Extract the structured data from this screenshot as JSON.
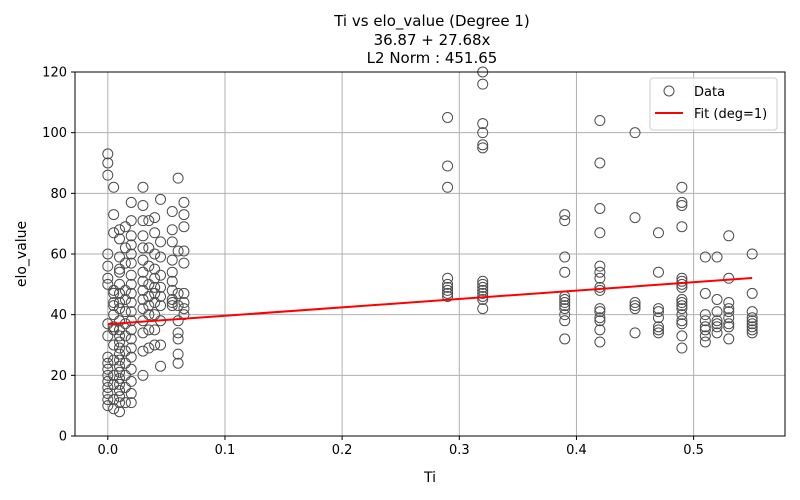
{
  "chart_data": {
    "type": "scatter",
    "title_lines": [
      "Ti vs elo_value (Degree 1)",
      "36.87 + 27.68x",
      "L2 Norm : 451.65"
    ],
    "xlabel": "Ti",
    "ylabel": "elo_value",
    "xlim": [
      -0.028,
      0.578
    ],
    "ylim": [
      0,
      120
    ],
    "xticks": [
      0.0,
      0.1,
      0.2,
      0.3,
      0.4,
      0.5
    ],
    "xtick_labels": [
      "0.0",
      "0.1",
      "0.2",
      "0.3",
      "0.4",
      "0.5"
    ],
    "yticks": [
      0,
      20,
      40,
      60,
      80,
      100,
      120
    ],
    "ytick_labels": [
      "0",
      "20",
      "40",
      "60",
      "80",
      "100",
      "120"
    ],
    "grid": true,
    "legend": {
      "position": "top-right",
      "entries": [
        "Data",
        "Fit (deg=1)"
      ]
    },
    "colors": {
      "data_marker": "#4d4d4d",
      "fit_line": "#ff0000",
      "grid": "#b0b0b0"
    },
    "series": [
      {
        "name": "Data",
        "kind": "scatter",
        "points": [
          [
            0.0,
            93
          ],
          [
            0.0,
            90
          ],
          [
            0.0,
            86
          ],
          [
            0.0,
            60
          ],
          [
            0.0,
            56
          ],
          [
            0.0,
            52
          ],
          [
            0.0,
            50
          ],
          [
            0.0,
            37
          ],
          [
            0.0,
            33
          ],
          [
            0.0,
            26
          ],
          [
            0.0,
            24
          ],
          [
            0.0,
            22
          ],
          [
            0.0,
            20
          ],
          [
            0.0,
            18
          ],
          [
            0.0,
            16
          ],
          [
            0.0,
            14
          ],
          [
            0.0,
            12
          ],
          [
            0.0,
            10
          ],
          [
            0.005,
            82
          ],
          [
            0.005,
            73
          ],
          [
            0.005,
            67
          ],
          [
            0.005,
            48
          ],
          [
            0.005,
            47
          ],
          [
            0.005,
            44
          ],
          [
            0.005,
            43
          ],
          [
            0.005,
            40
          ],
          [
            0.005,
            36
          ],
          [
            0.005,
            35
          ],
          [
            0.005,
            30
          ],
          [
            0.005,
            25
          ],
          [
            0.005,
            20
          ],
          [
            0.005,
            17
          ],
          [
            0.005,
            12
          ],
          [
            0.005,
            9
          ],
          [
            0.01,
            68
          ],
          [
            0.01,
            65
          ],
          [
            0.01,
            59
          ],
          [
            0.01,
            55
          ],
          [
            0.01,
            54
          ],
          [
            0.01,
            50
          ],
          [
            0.01,
            47
          ],
          [
            0.01,
            44
          ],
          [
            0.01,
            42
          ],
          [
            0.01,
            38
          ],
          [
            0.01,
            35
          ],
          [
            0.01,
            33
          ],
          [
            0.01,
            31
          ],
          [
            0.01,
            29
          ],
          [
            0.01,
            27
          ],
          [
            0.01,
            25
          ],
          [
            0.01,
            23
          ],
          [
            0.01,
            21
          ],
          [
            0.01,
            19
          ],
          [
            0.01,
            17
          ],
          [
            0.01,
            15
          ],
          [
            0.01,
            13
          ],
          [
            0.01,
            11
          ],
          [
            0.01,
            8
          ],
          [
            0.015,
            69
          ],
          [
            0.015,
            62
          ],
          [
            0.015,
            57
          ],
          [
            0.015,
            48
          ],
          [
            0.015,
            45
          ],
          [
            0.015,
            41
          ],
          [
            0.015,
            37
          ],
          [
            0.015,
            33
          ],
          [
            0.015,
            28
          ],
          [
            0.015,
            24
          ],
          [
            0.015,
            20
          ],
          [
            0.015,
            16
          ],
          [
            0.015,
            11
          ],
          [
            0.02,
            77
          ],
          [
            0.02,
            71
          ],
          [
            0.02,
            66
          ],
          [
            0.02,
            63
          ],
          [
            0.02,
            60
          ],
          [
            0.02,
            57
          ],
          [
            0.02,
            53
          ],
          [
            0.02,
            50
          ],
          [
            0.02,
            47
          ],
          [
            0.02,
            44
          ],
          [
            0.02,
            41
          ],
          [
            0.02,
            38
          ],
          [
            0.02,
            35
          ],
          [
            0.02,
            32
          ],
          [
            0.02,
            29
          ],
          [
            0.02,
            26
          ],
          [
            0.02,
            22
          ],
          [
            0.02,
            18
          ],
          [
            0.02,
            14
          ],
          [
            0.02,
            11
          ],
          [
            0.03,
            82
          ],
          [
            0.03,
            76
          ],
          [
            0.03,
            71
          ],
          [
            0.03,
            66
          ],
          [
            0.03,
            62
          ],
          [
            0.03,
            58
          ],
          [
            0.03,
            54
          ],
          [
            0.03,
            51
          ],
          [
            0.03,
            48
          ],
          [
            0.03,
            45
          ],
          [
            0.03,
            42
          ],
          [
            0.03,
            38
          ],
          [
            0.03,
            34
          ],
          [
            0.03,
            28
          ],
          [
            0.03,
            20
          ],
          [
            0.035,
            71
          ],
          [
            0.035,
            62
          ],
          [
            0.035,
            56
          ],
          [
            0.035,
            50
          ],
          [
            0.035,
            46
          ],
          [
            0.035,
            43
          ],
          [
            0.035,
            40
          ],
          [
            0.035,
            35
          ],
          [
            0.035,
            29
          ],
          [
            0.04,
            72
          ],
          [
            0.04,
            67
          ],
          [
            0.04,
            60
          ],
          [
            0.04,
            55
          ],
          [
            0.04,
            52
          ],
          [
            0.04,
            49
          ],
          [
            0.04,
            47
          ],
          [
            0.04,
            44
          ],
          [
            0.04,
            40
          ],
          [
            0.04,
            35
          ],
          [
            0.04,
            30
          ],
          [
            0.045,
            78
          ],
          [
            0.045,
            64
          ],
          [
            0.045,
            59
          ],
          [
            0.045,
            53
          ],
          [
            0.045,
            49
          ],
          [
            0.045,
            46
          ],
          [
            0.045,
            43
          ],
          [
            0.045,
            38
          ],
          [
            0.045,
            30
          ],
          [
            0.045,
            23
          ],
          [
            0.055,
            74
          ],
          [
            0.055,
            68
          ],
          [
            0.055,
            64
          ],
          [
            0.055,
            58
          ],
          [
            0.055,
            54
          ],
          [
            0.055,
            51
          ],
          [
            0.055,
            48
          ],
          [
            0.055,
            45
          ],
          [
            0.055,
            44
          ],
          [
            0.055,
            43
          ],
          [
            0.06,
            85
          ],
          [
            0.06,
            61
          ],
          [
            0.06,
            47
          ],
          [
            0.06,
            43
          ],
          [
            0.06,
            38
          ],
          [
            0.06,
            34
          ],
          [
            0.06,
            32
          ],
          [
            0.06,
            27
          ],
          [
            0.06,
            24
          ],
          [
            0.065,
            77
          ],
          [
            0.065,
            73
          ],
          [
            0.065,
            69
          ],
          [
            0.065,
            61
          ],
          [
            0.065,
            57
          ],
          [
            0.065,
            47
          ],
          [
            0.065,
            44
          ],
          [
            0.065,
            42
          ],
          [
            0.065,
            40
          ],
          [
            0.29,
            105
          ],
          [
            0.29,
            89
          ],
          [
            0.29,
            82
          ],
          [
            0.29,
            52
          ],
          [
            0.29,
            50
          ],
          [
            0.29,
            49
          ],
          [
            0.29,
            48
          ],
          [
            0.29,
            47
          ],
          [
            0.29,
            46
          ],
          [
            0.32,
            120
          ],
          [
            0.32,
            116
          ],
          [
            0.32,
            103
          ],
          [
            0.32,
            100
          ],
          [
            0.32,
            96
          ],
          [
            0.32,
            95
          ],
          [
            0.32,
            51
          ],
          [
            0.32,
            50
          ],
          [
            0.32,
            49
          ],
          [
            0.32,
            48
          ],
          [
            0.32,
            47
          ],
          [
            0.32,
            46
          ],
          [
            0.32,
            45
          ],
          [
            0.32,
            42
          ],
          [
            0.39,
            73
          ],
          [
            0.39,
            71
          ],
          [
            0.39,
            59
          ],
          [
            0.39,
            54
          ],
          [
            0.39,
            46
          ],
          [
            0.39,
            45
          ],
          [
            0.39,
            44
          ],
          [
            0.39,
            43
          ],
          [
            0.39,
            42
          ],
          [
            0.39,
            40
          ],
          [
            0.39,
            38
          ],
          [
            0.39,
            32
          ],
          [
            0.42,
            104
          ],
          [
            0.42,
            90
          ],
          [
            0.42,
            75
          ],
          [
            0.42,
            67
          ],
          [
            0.42,
            56
          ],
          [
            0.42,
            54
          ],
          [
            0.42,
            52
          ],
          [
            0.42,
            49
          ],
          [
            0.42,
            48
          ],
          [
            0.42,
            42
          ],
          [
            0.42,
            41
          ],
          [
            0.42,
            39
          ],
          [
            0.42,
            38
          ],
          [
            0.42,
            35
          ],
          [
            0.42,
            31
          ],
          [
            0.45,
            100
          ],
          [
            0.45,
            72
          ],
          [
            0.45,
            44
          ],
          [
            0.45,
            43
          ],
          [
            0.45,
            42
          ],
          [
            0.45,
            34
          ],
          [
            0.47,
            67
          ],
          [
            0.47,
            54
          ],
          [
            0.47,
            42
          ],
          [
            0.47,
            41
          ],
          [
            0.47,
            39
          ],
          [
            0.47,
            36
          ],
          [
            0.47,
            35
          ],
          [
            0.47,
            34
          ],
          [
            0.49,
            82
          ],
          [
            0.49,
            77
          ],
          [
            0.49,
            76
          ],
          [
            0.49,
            69
          ],
          [
            0.49,
            52
          ],
          [
            0.49,
            51
          ],
          [
            0.49,
            50
          ],
          [
            0.49,
            49
          ],
          [
            0.49,
            45
          ],
          [
            0.49,
            44
          ],
          [
            0.49,
            43
          ],
          [
            0.49,
            42
          ],
          [
            0.49,
            40
          ],
          [
            0.49,
            38
          ],
          [
            0.49,
            37
          ],
          [
            0.49,
            33
          ],
          [
            0.49,
            29
          ],
          [
            0.51,
            59
          ],
          [
            0.51,
            47
          ],
          [
            0.51,
            40
          ],
          [
            0.51,
            38
          ],
          [
            0.51,
            36
          ],
          [
            0.51,
            35
          ],
          [
            0.51,
            33
          ],
          [
            0.51,
            31
          ],
          [
            0.52,
            59
          ],
          [
            0.52,
            45
          ],
          [
            0.52,
            41
          ],
          [
            0.52,
            38
          ],
          [
            0.52,
            37
          ],
          [
            0.52,
            36
          ],
          [
            0.52,
            34
          ],
          [
            0.53,
            66
          ],
          [
            0.53,
            52
          ],
          [
            0.53,
            44
          ],
          [
            0.53,
            42
          ],
          [
            0.53,
            41
          ],
          [
            0.53,
            39
          ],
          [
            0.53,
            37
          ],
          [
            0.53,
            36
          ],
          [
            0.53,
            32
          ],
          [
            0.55,
            60
          ],
          [
            0.55,
            47
          ],
          [
            0.55,
            41
          ],
          [
            0.55,
            39
          ],
          [
            0.55,
            38
          ],
          [
            0.55,
            37
          ],
          [
            0.55,
            36
          ],
          [
            0.55,
            35
          ],
          [
            0.55,
            34
          ]
        ]
      },
      {
        "name": "Fit (deg=1)",
        "kind": "line",
        "points": [
          [
            0.0,
            36.87
          ],
          [
            0.55,
            52.09
          ]
        ]
      }
    ]
  }
}
